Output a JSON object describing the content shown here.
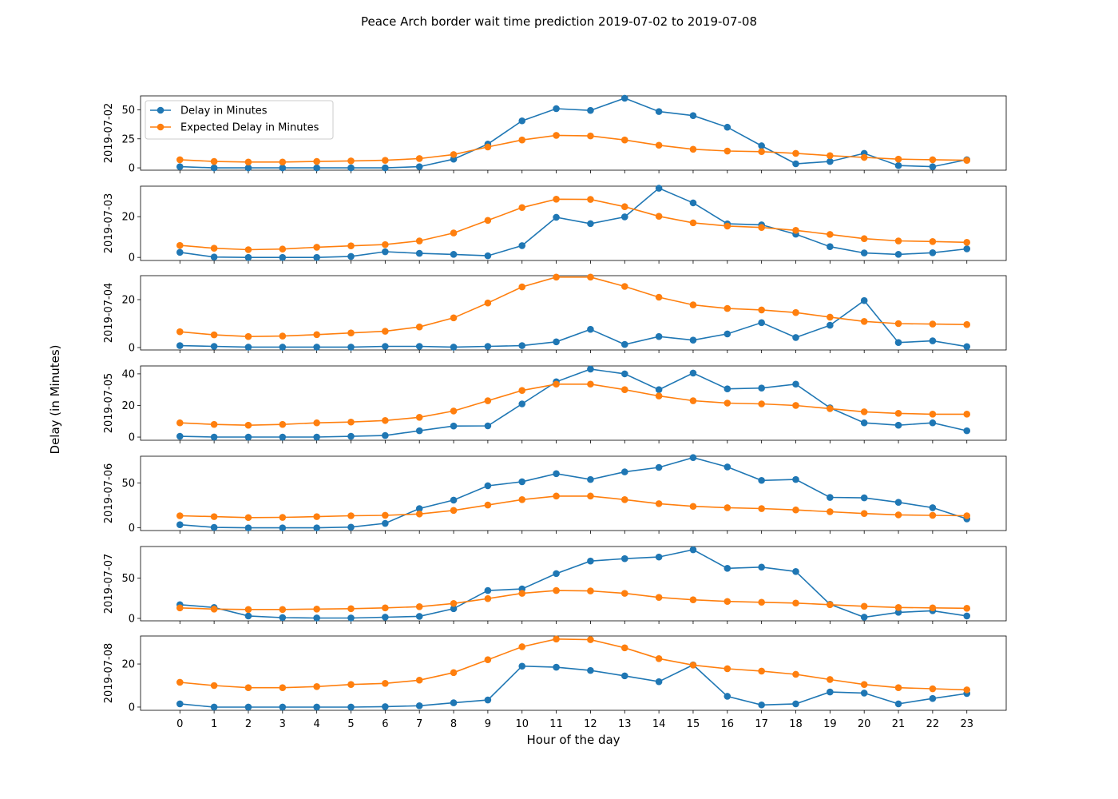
{
  "title": "Peace Arch border wait time prediction 2019-07-02 to 2019-07-08",
  "xlabel": "Hour of the day",
  "ylabel": "Delay (in Minutes)",
  "legend": {
    "placement": "top-left",
    "entries": [
      "Delay in Minutes",
      "Expected Delay in Minutes"
    ]
  },
  "colors": {
    "actual": "#1f77b4",
    "expected": "#ff7f0e"
  },
  "chart_data": {
    "type": "line",
    "x": [
      0,
      1,
      2,
      3,
      4,
      5,
      6,
      7,
      8,
      9,
      10,
      11,
      12,
      13,
      14,
      15,
      16,
      17,
      18,
      19,
      20,
      21,
      22,
      23
    ],
    "xlim": [
      -1.15,
      24.15
    ],
    "grid": false,
    "panels": [
      {
        "ylabel": "2019-07-02",
        "ylim": [
          -2,
          62
        ],
        "yticks": [
          0,
          25,
          50
        ],
        "series": [
          {
            "name": "Delay in Minutes",
            "values": [
              1,
              0,
              0,
              0,
              0,
              0,
              0,
              1,
              7.5,
              20.5,
              40.5,
              51,
              49.5,
              60,
              48.5,
              45,
              35,
              19,
              3.5,
              5.5,
              12.5,
              2,
              1,
              7
            ]
          },
          {
            "name": "Expected Delay in Minutes",
            "values": [
              7,
              5.5,
              5,
              5,
              5.5,
              6,
              6.5,
              8,
              11.5,
              18,
              24,
              28,
              27.5,
              24,
              19.5,
              16,
              14.5,
              14,
              12.5,
              10.5,
              9,
              7.5,
              7,
              6.5
            ]
          }
        ]
      },
      {
        "ylabel": "2019-07-03",
        "ylim": [
          -1.5,
          35
        ],
        "yticks": [
          0,
          20
        ],
        "series": [
          {
            "name": "Delay in Minutes",
            "values": [
              2.5,
              0.2,
              0,
              0,
              0,
              0.5,
              2.8,
              2,
              1.5,
              0.8,
              5.8,
              19.7,
              16.6,
              19.9,
              34,
              26.8,
              16.5,
              16,
              11.4,
              5.3,
              2.2,
              1.5,
              2.3,
              4.2
            ]
          },
          {
            "name": "Expected Delay in Minutes",
            "values": [
              5.9,
              4.5,
              3.8,
              4.1,
              5,
              5.7,
              6.3,
              8.1,
              12,
              18.2,
              24.5,
              28.6,
              28.5,
              24.9,
              20.2,
              17,
              15.4,
              14.7,
              13.3,
              11.3,
              9.2,
              8.1,
              7.8,
              7.4
            ]
          }
        ]
      },
      {
        "ylabel": "2019-07-04",
        "ylim": [
          -1,
          30
        ],
        "yticks": [
          0,
          20
        ],
        "series": [
          {
            "name": "Delay in Minutes",
            "values": [
              0.8,
              0.5,
              0.2,
              0.2,
              0.2,
              0.2,
              0.5,
              0.5,
              0.2,
              0.5,
              0.8,
              2.4,
              7.6,
              1.3,
              4.6,
              3.1,
              5.7,
              10.4,
              4.2,
              9.3,
              19.6,
              2.1,
              2.8,
              0.4
            ]
          },
          {
            "name": "Expected Delay in Minutes",
            "values": [
              6.6,
              5.3,
              4.6,
              4.8,
              5.4,
              6.1,
              6.8,
              8.6,
              12.4,
              18.6,
              25.3,
              29.4,
              29.4,
              25.5,
              21,
              17.8,
              16.3,
              15.7,
              14.6,
              12.7,
              10.9,
              10,
              9.8,
              9.6
            ]
          }
        ]
      },
      {
        "ylabel": "2019-07-05",
        "ylim": [
          -2,
          45
        ],
        "yticks": [
          0,
          20,
          40
        ],
        "series": [
          {
            "name": "Delay in Minutes",
            "values": [
              0.5,
              0,
              0,
              0,
              0,
              0.5,
              1,
              4,
              7,
              7.1,
              21,
              35,
              43,
              40,
              30,
              40.5,
              30.5,
              31,
              33.5,
              18.5,
              9,
              7.5,
              9,
              4
            ]
          },
          {
            "name": "Expected Delay in Minutes",
            "values": [
              9,
              8,
              7.5,
              8,
              9,
              9.5,
              10.5,
              12.5,
              16.5,
              23,
              29.5,
              33.5,
              33.5,
              30,
              26,
              23,
              21.5,
              21,
              20,
              18,
              16,
              15,
              14.5,
              14.5
            ]
          }
        ]
      },
      {
        "ylabel": "2019-07-06",
        "ylim": [
          -3,
          80
        ],
        "yticks": [
          0,
          50
        ],
        "series": [
          {
            "name": "Delay in Minutes",
            "values": [
              3.5,
              0.5,
              0,
              0,
              0,
              0.8,
              5,
              21.5,
              31,
              47,
              51.5,
              60.5,
              54,
              62.5,
              67.5,
              78.5,
              68,
              53,
              54,
              34,
              33.5,
              28.5,
              22.5,
              10
            ]
          },
          {
            "name": "Expected Delay in Minutes",
            "values": [
              13.5,
              12.5,
              11.5,
              11.7,
              12.5,
              13.5,
              14,
              15.5,
              19.5,
              25.5,
              31.5,
              35.5,
              35.5,
              31.5,
              27,
              24,
              22.5,
              21.5,
              20,
              18,
              16,
              14.5,
              14,
              13.5
            ]
          }
        ]
      },
      {
        "ylabel": "2019-07-07",
        "ylim": [
          -3,
          89
        ],
        "yticks": [
          0,
          50
        ],
        "series": [
          {
            "name": "Delay in Minutes",
            "values": [
              17,
              13.5,
              3,
              1,
              0.5,
              0.5,
              1.5,
              2.5,
              12,
              34.5,
              36.5,
              55.5,
              71,
              74,
              76,
              85,
              62,
              63.5,
              58,
              17.5,
              1.5,
              7.5,
              9.5,
              3
            ]
          },
          {
            "name": "Expected Delay in Minutes",
            "values": [
              13,
              11.5,
              11,
              11,
              11.5,
              12,
              13,
              14.5,
              18.5,
              24.5,
              31,
              34.5,
              34,
              31,
              26,
              23,
              21,
              20,
              19,
              17,
              15,
              13.5,
              13,
              12.5
            ]
          }
        ]
      },
      {
        "ylabel": "2019-07-08",
        "ylim": [
          -1.5,
          33
        ],
        "yticks": [
          0,
          20
        ],
        "series": [
          {
            "name": "Delay in Minutes",
            "values": [
              1.5,
              0,
              0,
              0,
              0,
              0,
              0.2,
              0.6,
              2,
              3.3,
              19,
              18.5,
              17,
              14.5,
              11.8,
              19.6,
              5,
              1,
              1.5,
              7,
              6.5,
              1.5,
              4,
              6.3
            ]
          },
          {
            "name": "Expected Delay in Minutes",
            "values": [
              11.5,
              10,
              9,
              9,
              9.5,
              10.5,
              11,
              12.5,
              16,
              22,
              28,
              31.6,
              31.3,
              27.5,
              22.5,
              19.5,
              17.8,
              16.7,
              15.2,
              12.8,
              10.5,
              9,
              8.5,
              8
            ]
          }
        ]
      }
    ]
  }
}
